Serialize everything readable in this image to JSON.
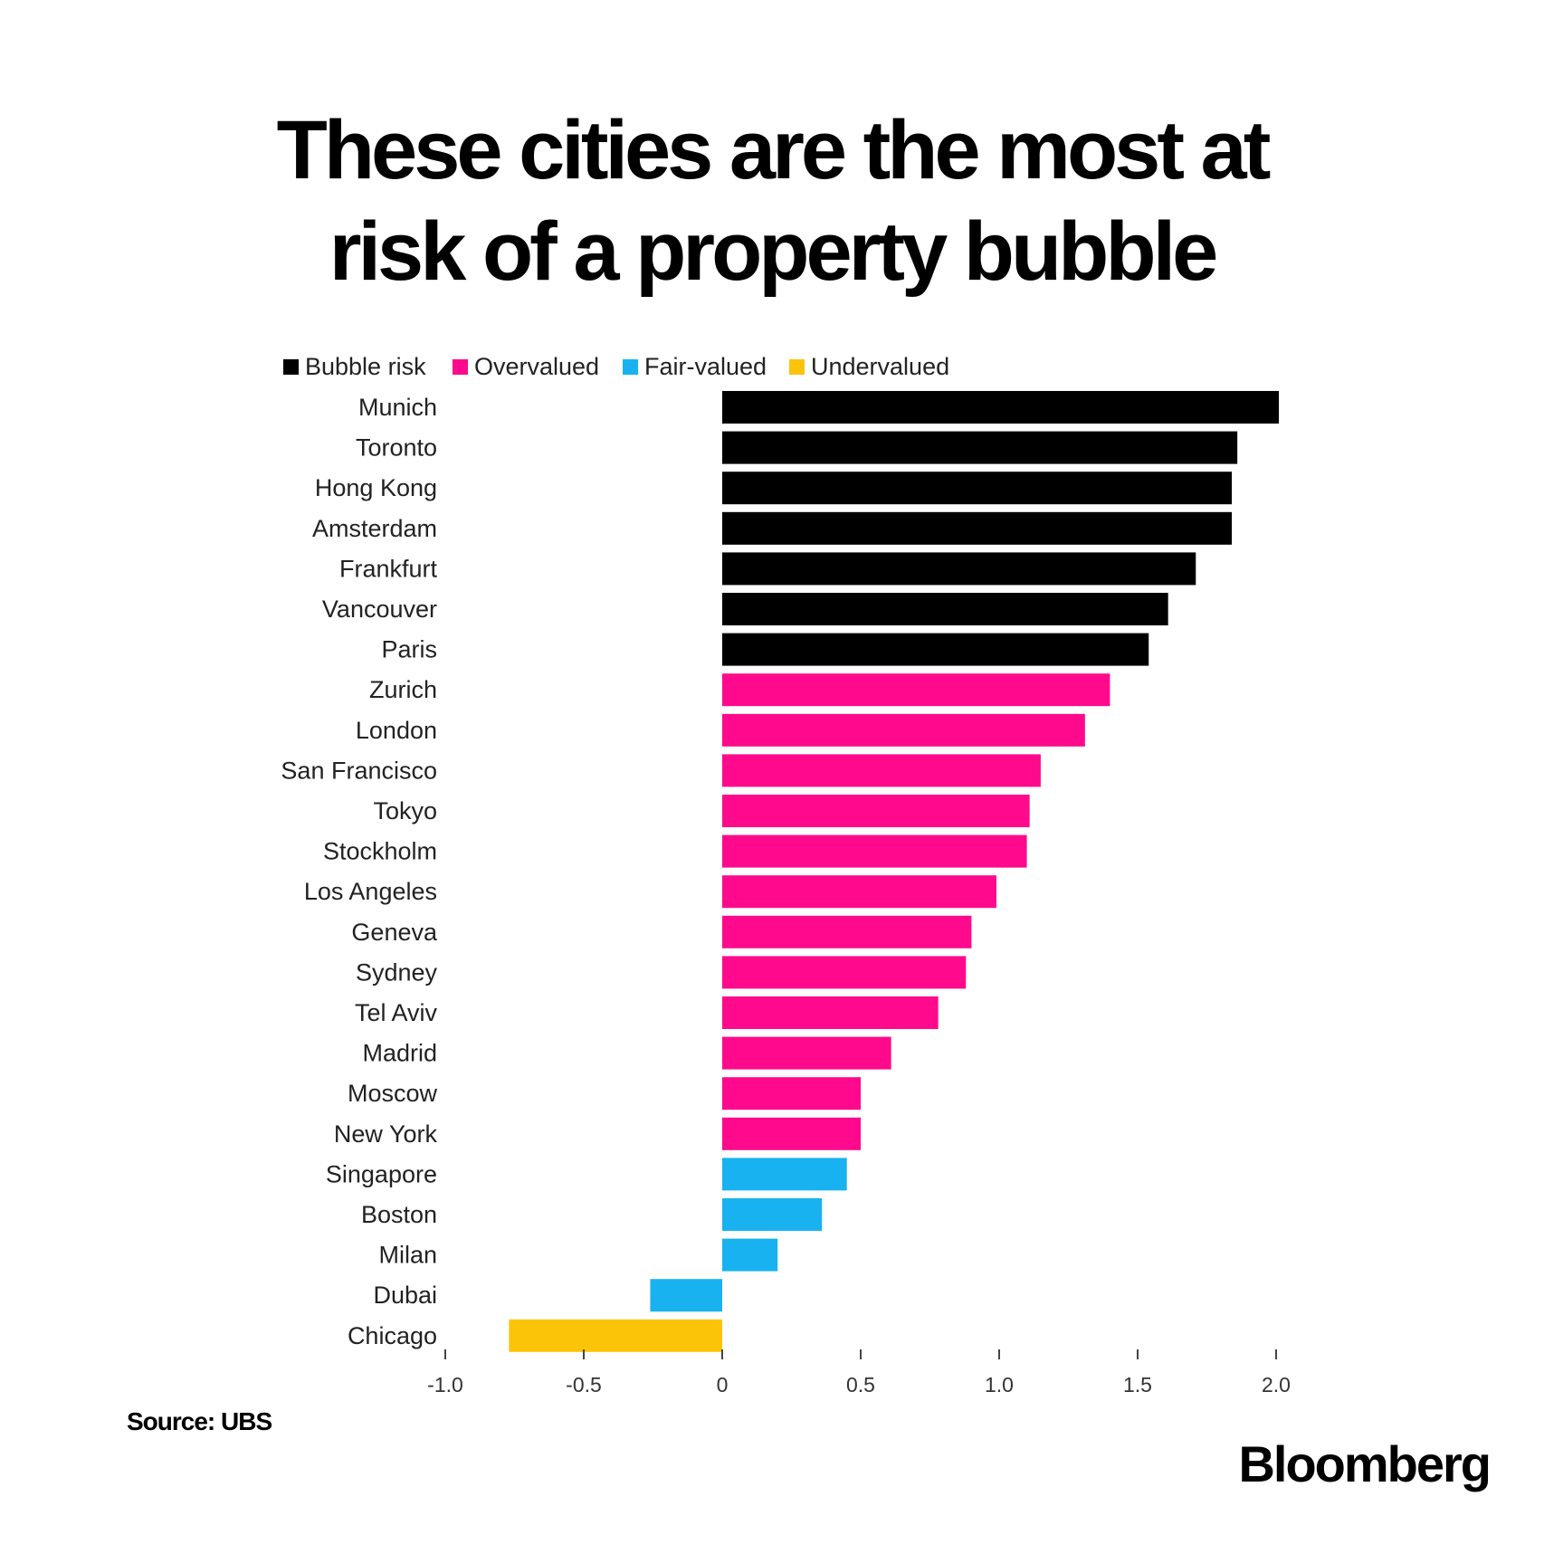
{
  "chart_data": {
    "type": "bar",
    "orientation": "horizontal",
    "title": "These cities are the most at risk of a property bubble",
    "title_lines": [
      "These cities are the most at",
      "risk of a property bubble"
    ],
    "xlim": [
      -1.0,
      2.0
    ],
    "xticks": [
      -1.0,
      -0.5,
      0,
      0.5,
      1.0,
      1.5,
      2.0
    ],
    "xtick_labels": [
      "-1.0",
      "-0.5",
      "0",
      "0.5",
      "1.0",
      "1.5",
      "2.0"
    ],
    "grid": false,
    "legend_position": "top-left",
    "legend": [
      {
        "label": "Bubble risk",
        "color": "#000000"
      },
      {
        "label": "Overvalued",
        "color": "#ff0a8c"
      },
      {
        "label": "Fair-valued",
        "color": "#18b2f0"
      },
      {
        "label": "Undervalued",
        "color": "#fcc409"
      }
    ],
    "categories": [
      "Munich",
      "Toronto",
      "Hong Kong",
      "Amsterdam",
      "Frankfurt",
      "Vancouver",
      "Paris",
      "Zurich",
      "London",
      "San Francisco",
      "Tokyo",
      "Stockholm",
      "Los Angeles",
      "Geneva",
      "Sydney",
      "Tel Aviv",
      "Madrid",
      "Moscow",
      "New York",
      "Singapore",
      "Boston",
      "Milan",
      "Dubai",
      "Chicago"
    ],
    "values": [
      2.01,
      1.86,
      1.84,
      1.84,
      1.71,
      1.61,
      1.54,
      1.4,
      1.31,
      1.15,
      1.11,
      1.1,
      0.99,
      0.9,
      0.88,
      0.78,
      0.61,
      0.5,
      0.5,
      0.45,
      0.36,
      0.2,
      -0.26,
      -0.77
    ],
    "groups": [
      "Bubble risk",
      "Bubble risk",
      "Bubble risk",
      "Bubble risk",
      "Bubble risk",
      "Bubble risk",
      "Bubble risk",
      "Overvalued",
      "Overvalued",
      "Overvalued",
      "Overvalued",
      "Overvalued",
      "Overvalued",
      "Overvalued",
      "Overvalued",
      "Overvalued",
      "Overvalued",
      "Overvalued",
      "Overvalued",
      "Fair-valued",
      "Fair-valued",
      "Fair-valued",
      "Fair-valued",
      "Undervalued"
    ]
  },
  "footer": {
    "source": "Source: UBS",
    "logo": "Bloomberg"
  }
}
